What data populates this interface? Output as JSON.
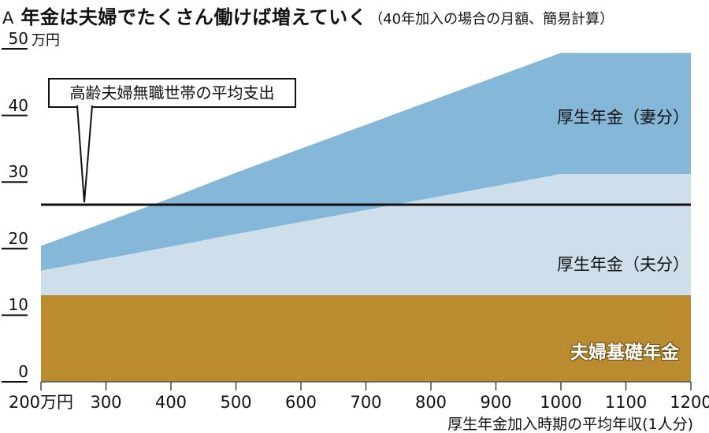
{
  "title": {
    "prefix": "A",
    "main": "年金は夫婦でたくさん働けば増えていく",
    "note": "（40年加入の場合の月額、簡易計算）"
  },
  "y_axis": {
    "unit": "万円"
  },
  "annotation": {
    "text": "高齢夫婦無職世帯の平均支出"
  },
  "area_labels": {
    "wife": "厚生年金（妻分）",
    "husband": "厚生年金（夫分）",
    "base": "夫婦基礎年金"
  },
  "x_axis_title": "厚生年金加入時期の平均年収(1人分)",
  "colors": {
    "base": "#ba8b2f",
    "husband": "#cfdeeb",
    "wife": "#85b7d9",
    "reference_line": "#111111",
    "axis": "#444444",
    "text": "#111111"
  },
  "chart_data": {
    "type": "area",
    "stacked": true,
    "title": "年金は夫婦でたくさん働けば増えていく（40年加入の場合の月額、簡易計算）",
    "x": [
      200,
      300,
      400,
      500,
      600,
      700,
      800,
      900,
      1000,
      1100,
      1200
    ],
    "x_tick_labels": [
      "200万円",
      "300",
      "400",
      "500",
      "600",
      "700",
      "800",
      "900",
      "1000",
      "1100",
      "1200"
    ],
    "xlabel": "厚生年金加入時期の平均年収(1人分)",
    "ylabel": "万円",
    "ylim": [
      0,
      50
    ],
    "yticks": [
      0,
      10,
      20,
      30,
      40,
      50
    ],
    "series": [
      {
        "name": "夫婦基礎年金",
        "color": "#ba8b2f",
        "values": [
          13,
          13,
          13,
          13,
          13,
          13,
          13,
          13,
          13,
          13,
          13
        ]
      },
      {
        "name": "厚生年金（夫分）",
        "color": "#cfdeeb",
        "values": [
          3.7,
          5.5,
          7.3,
          9.2,
          11.0,
          12.8,
          14.6,
          16.4,
          18.2,
          18.2,
          18.2
        ]
      },
      {
        "name": "厚生年金（妻分）",
        "color": "#85b7d9",
        "values": [
          3.7,
          5.5,
          7.3,
          9.2,
          11.0,
          12.8,
          14.6,
          16.4,
          18.2,
          18.2,
          18.2
        ]
      }
    ],
    "reference_line": {
      "value": 26.6,
      "label": "高齢夫婦無職世帯の平均支出"
    },
    "legend_position": "in-plot-labels",
    "grid": false
  }
}
